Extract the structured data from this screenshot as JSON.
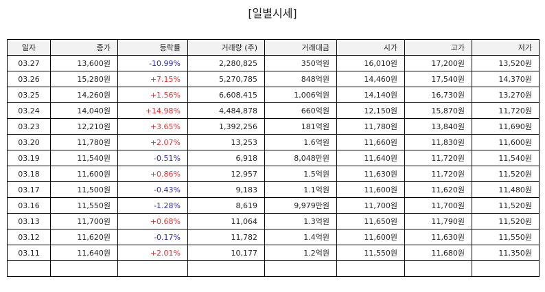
{
  "title": "[일별시세]",
  "columns": [
    "일자",
    "종가",
    "등락률",
    "거래량 (주)",
    "거래대금",
    "시가",
    "고가",
    "저가"
  ],
  "rows": [
    {
      "date": "03.27",
      "close": "13,600원",
      "change": "-10.99%",
      "volume": "2,280,825",
      "amount": "350억원",
      "open": "16,010원",
      "high": "17,200원",
      "low": "13,520원"
    },
    {
      "date": "03.26",
      "close": "15,280원",
      "change": "+7.15%",
      "volume": "5,270,785",
      "amount": "848억원",
      "open": "14,460원",
      "high": "17,540원",
      "low": "14,370원"
    },
    {
      "date": "03.25",
      "close": "14,260원",
      "change": "+1.56%",
      "volume": "6,608,415",
      "amount": "1,006억원",
      "open": "14,140원",
      "high": "16,730원",
      "low": "13,270원"
    },
    {
      "date": "03.24",
      "close": "14,040원",
      "change": "+14.98%",
      "volume": "4,484,878",
      "amount": "660억원",
      "open": "12,150원",
      "high": "15,870원",
      "low": "11,720원"
    },
    {
      "date": "03.23",
      "close": "12,210원",
      "change": "+3.65%",
      "volume": "1,392,256",
      "amount": "181억원",
      "open": "11,780원",
      "high": "13,840원",
      "low": "11,690원"
    },
    {
      "date": "03.20",
      "close": "11,780원",
      "change": "+2.07%",
      "volume": "13,253",
      "amount": "1.6억원",
      "open": "11,660원",
      "high": "11,830원",
      "low": "11,600원"
    },
    {
      "date": "03.19",
      "close": "11,540원",
      "change": "-0.51%",
      "volume": "6,918",
      "amount": "8,048만원",
      "open": "11,640원",
      "high": "11,720원",
      "low": "11,540원"
    },
    {
      "date": "03.18",
      "close": "11,600원",
      "change": "+0.86%",
      "volume": "12,957",
      "amount": "1.5억원",
      "open": "11,630원",
      "high": "11,720원",
      "low": "11,520원"
    },
    {
      "date": "03.17",
      "close": "11,500원",
      "change": "-0.43%",
      "volume": "9,183",
      "amount": "1.1억원",
      "open": "11,600원",
      "high": "11,620원",
      "low": "11,480원"
    },
    {
      "date": "03.16",
      "close": "11,550원",
      "change": "-1.28%",
      "volume": "8,619",
      "amount": "9,979만원",
      "open": "11,700원",
      "high": "11,700원",
      "low": "11,520원"
    },
    {
      "date": "03.13",
      "close": "11,700원",
      "change": "+0.68%",
      "volume": "11,064",
      "amount": "1.3억원",
      "open": "11,650원",
      "high": "11,790원",
      "low": "11,520원"
    },
    {
      "date": "03.12",
      "close": "11,620원",
      "change": "-0.17%",
      "volume": "11,782",
      "amount": "1.4억원",
      "open": "11,600원",
      "high": "11,630원",
      "low": "11,550원"
    },
    {
      "date": "03.11",
      "close": "11,640원",
      "change": "+2.01%",
      "volume": "10,177",
      "amount": "1.2억원",
      "open": "11,550원",
      "high": "11,680원",
      "low": "11,350원"
    },
    {
      "date": "",
      "close": "",
      "change": "",
      "volume": "",
      "amount": "",
      "open": "",
      "high": "",
      "low": ""
    }
  ],
  "colors": {
    "up": "#e03030",
    "down": "#2a2ab0",
    "header_bg": "#f2f2f2"
  }
}
